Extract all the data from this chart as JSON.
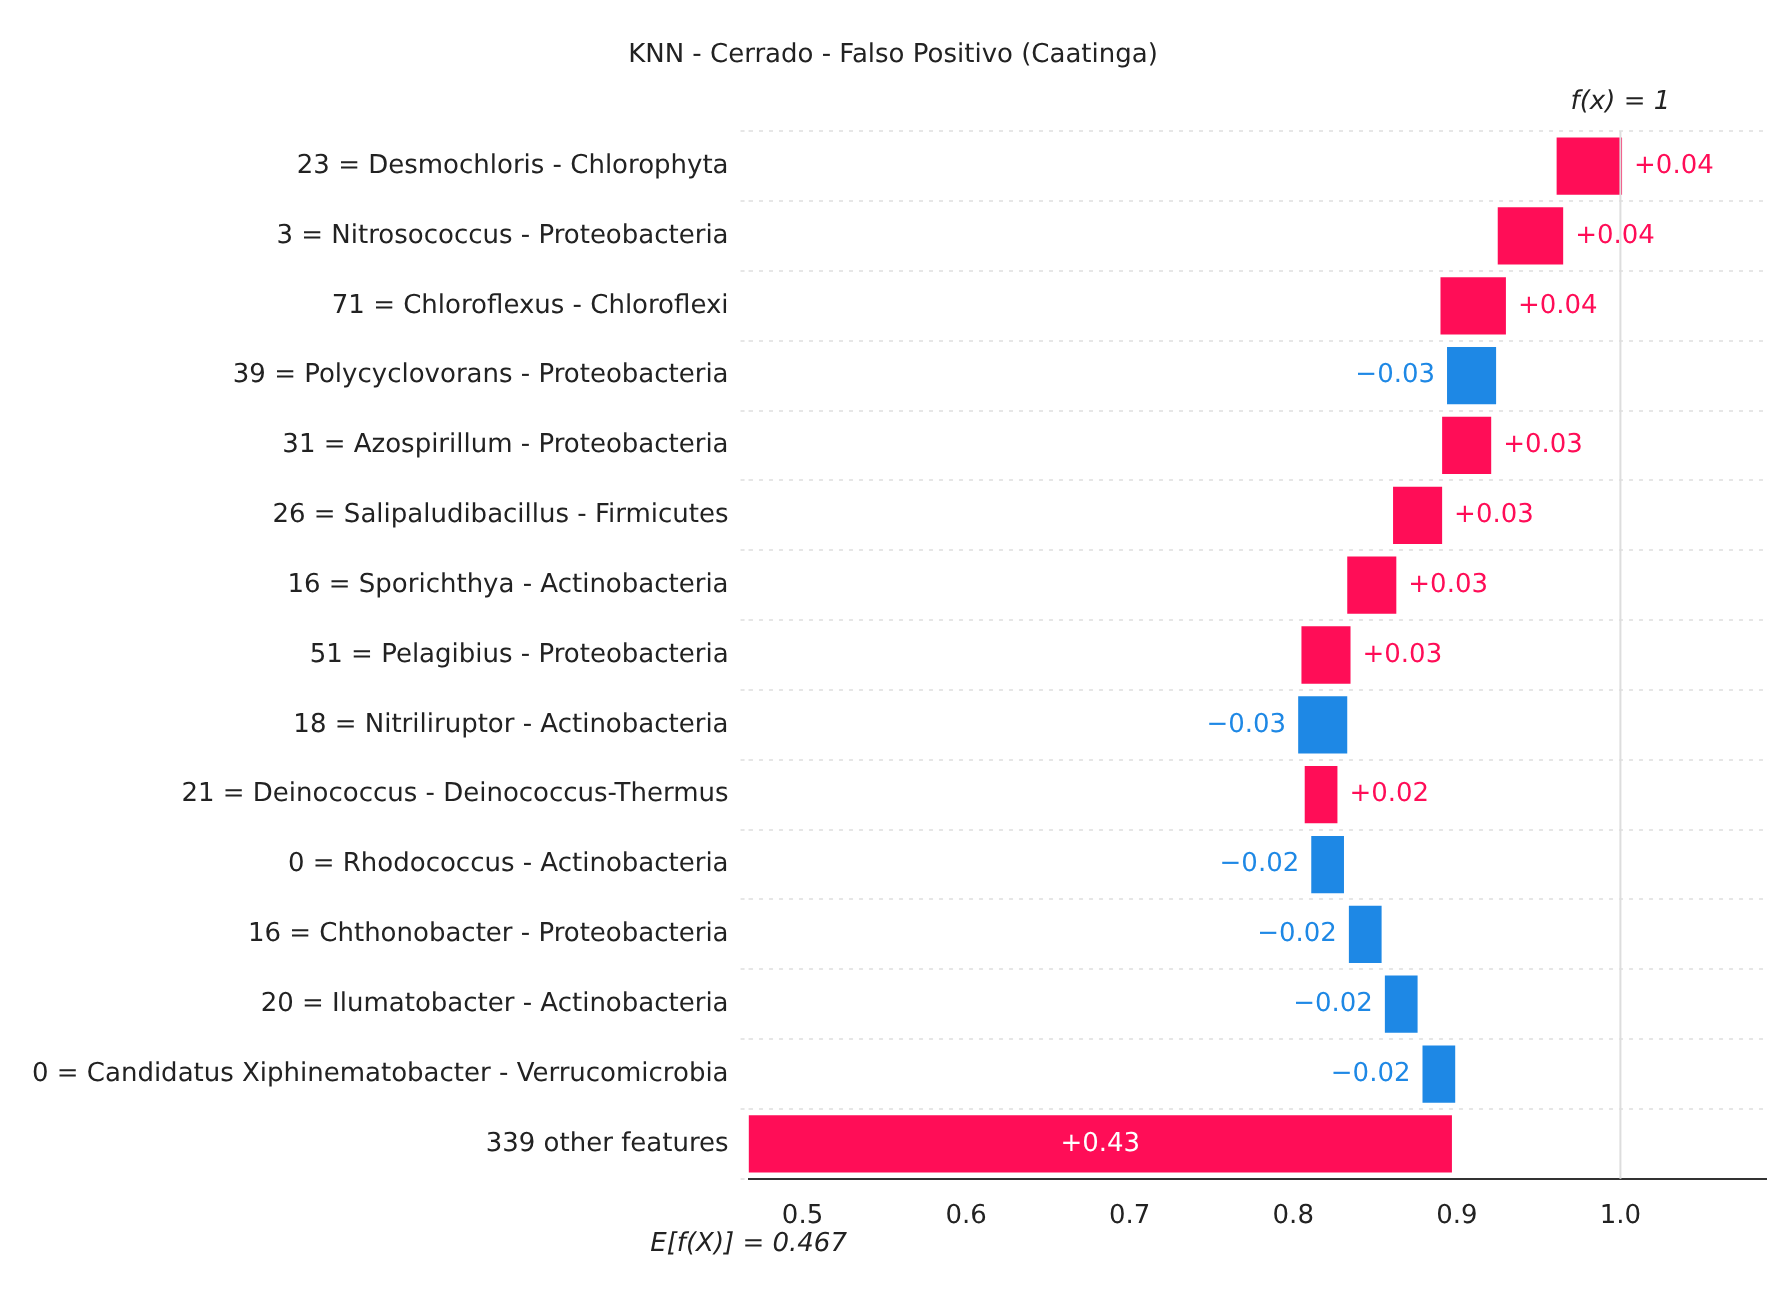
{
  "chart_data": {
    "type": "bar",
    "orientation": "horizontal",
    "title": "KNN - Cerrado - Falso Positivo (Caatinga)",
    "categories": [
      "23 = Desmochloris - Chlorophyta",
      "3 = Nitrosococcus - Proteobacteria",
      "71 = Chloroflexus - Chloroflexi",
      "39 = Polycyclovorans - Proteobacteria",
      "31 = Azospirillum - Proteobacteria",
      "26 = Salipaludibacillus - Firmicutes",
      "16 = Sporichthya - Actinobacteria",
      "51 = Pelagibius - Proteobacteria",
      "18 = Nitriliruptor - Actinobacteria",
      "21 = Deinococcus - Deinococcus-Thermus",
      "0 = Rhodococcus - Actinobacteria",
      "16 = Chthonobacter - Proteobacteria",
      "20 = Ilumatobacter - Actinobacteria",
      "0 = Candidatus Xiphinematobacter - Verrucomicrobia",
      "339 other features"
    ],
    "values": [
      0.04,
      0.04,
      0.04,
      -0.03,
      0.03,
      0.03,
      0.03,
      0.03,
      -0.03,
      0.02,
      -0.02,
      -0.02,
      -0.02,
      -0.02,
      0.43
    ],
    "base": [
      0.961,
      0.925,
      0.89,
      0.924,
      0.891,
      0.861,
      0.833,
      0.805,
      0.833,
      0.807,
      0.831,
      0.854,
      0.876,
      0.899,
      0.467
    ],
    "colors": [
      "#ff0d57",
      "#ff0d57",
      "#ff0d57",
      "#1e88e5",
      "#ff0d57",
      "#ff0d57",
      "#ff0d57",
      "#ff0d57",
      "#1e88e5",
      "#ff0d57",
      "#1e88e5",
      "#1e88e5",
      "#1e88e5",
      "#1e88e5",
      "#ff0d57"
    ],
    "value_labels": [
      "+0.04",
      "+0.04",
      "+0.04",
      "−0.03",
      "+0.03",
      "+0.03",
      "+0.03",
      "+0.03",
      "−0.03",
      "+0.02",
      "−0.02",
      "−0.02",
      "−0.02",
      "−0.02",
      "+0.43"
    ],
    "annotations": [
      "E[f(X)] = 0.467",
      "f(x) = 1"
    ],
    "xlim": [
      0.467,
      1.089
    ],
    "xticks": [
      0.5,
      0.6,
      0.7,
      0.8,
      0.9,
      {
        "value": 1,
        "label": "1.0"
      }
    ],
    "ref_lines": [
      {
        "axis": "x",
        "value": 1,
        "color": "#dddddd"
      }
    ],
    "grid": "y"
  }
}
